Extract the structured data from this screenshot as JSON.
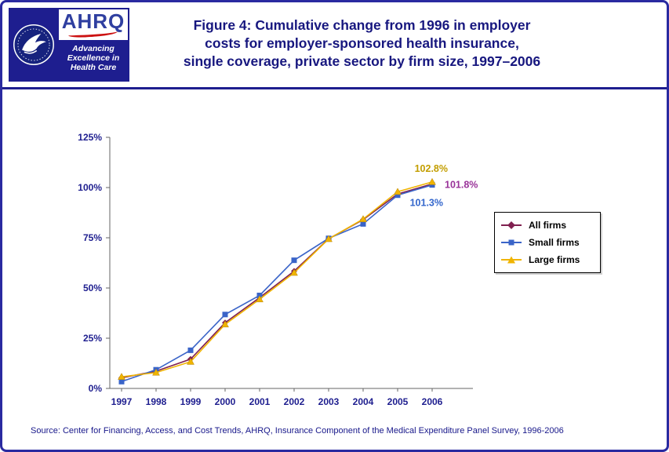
{
  "colors": {
    "navy": "#1E1E8F",
    "border": "#2A2AA0",
    "title": "#17177F",
    "axis": "#1E1E8F",
    "source": "#17178A"
  },
  "header": {
    "logo": {
      "acronym": "AHRQ",
      "tagline_lines": [
        "Advancing",
        "Excellence in",
        "Health Care"
      ]
    },
    "title_lines": [
      "Figure 4: Cumulative change from 1996 in employer",
      "costs for employer-sponsored health insurance,",
      "single coverage, private sector by firm size, 1997–2006"
    ]
  },
  "chart_data": {
    "type": "line",
    "title": "Figure 4: Cumulative change from 1996 in employer costs for employer-sponsored health insurance, single coverage, private sector by firm size, 1997–2006",
    "categories": [
      "1997",
      "1998",
      "1999",
      "2000",
      "2001",
      "2002",
      "2003",
      "2004",
      "2005",
      "2006"
    ],
    "y_ticks": [
      "0%",
      "25%",
      "50%",
      "75%",
      "100%",
      "125%"
    ],
    "ylim": [
      0,
      125
    ],
    "y_tick_interval": 25,
    "grid": false,
    "legend_position": "right",
    "xlabel": "",
    "ylabel": "",
    "series": [
      {
        "name": "All firms",
        "marker": "diamond",
        "color": "#802050",
        "values": [
          5.3,
          8.6,
          14.6,
          32.7,
          45.2,
          58.4,
          74.5,
          84.0,
          96.8,
          101.8
        ],
        "end_label": {
          "text": "101.8%",
          "color": "#993399"
        }
      },
      {
        "name": "Small firms",
        "marker": "square",
        "color": "#3A64C8",
        "values": [
          3.4,
          9.3,
          19.0,
          36.8,
          46.3,
          63.8,
          74.7,
          81.9,
          96.2,
          101.3
        ],
        "end_label": {
          "text": "101.3%",
          "color": "#3366CC"
        }
      },
      {
        "name": "Large firms",
        "marker": "triangle",
        "color": "#F0B400",
        "values": [
          5.8,
          7.9,
          13.3,
          31.9,
          44.4,
          57.6,
          74.4,
          84.3,
          97.9,
          102.8
        ],
        "end_label": {
          "text": "102.8%",
          "color": "#C39E00"
        }
      }
    ]
  },
  "footer": {
    "source": "Source: Center for Financing, Access, and Cost Trends, AHRQ, Insurance Component of the Medical Expenditure Panel Survey, 1996-2006"
  }
}
